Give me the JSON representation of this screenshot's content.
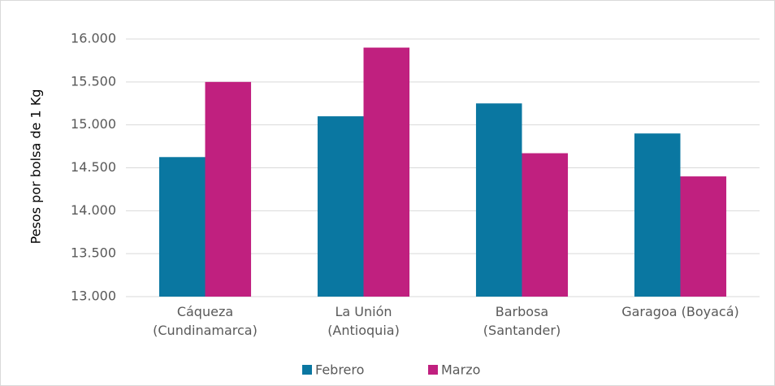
{
  "chart_data": {
    "type": "bar",
    "y_label": "Pesos por bolsa de 1 Kg",
    "categories": [
      "Cáqueza\n(Cundinamarca)",
      "La Unión\n(Antioquia)",
      "Barbosa\n(Santander)",
      "Garagoa (Boyacá)"
    ],
    "series": [
      {
        "name": "Febrero",
        "color": "#0a77a1",
        "values": [
          14625,
          15100,
          15250,
          14900
        ]
      },
      {
        "name": "Marzo",
        "color": "#c0207f",
        "values": [
          15500,
          15900,
          14670,
          14400
        ]
      }
    ],
    "ylim": [
      13000,
      16000
    ],
    "yticks": [
      {
        "value": 13000,
        "label": "13.000"
      },
      {
        "value": 13500,
        "label": "13.500"
      },
      {
        "value": 14000,
        "label": "14.000"
      },
      {
        "value": 14500,
        "label": "14.500"
      },
      {
        "value": 15000,
        "label": "15.000"
      },
      {
        "value": 15500,
        "label": "15.500"
      },
      {
        "value": 16000,
        "label": "16.000"
      }
    ],
    "grid": true
  }
}
